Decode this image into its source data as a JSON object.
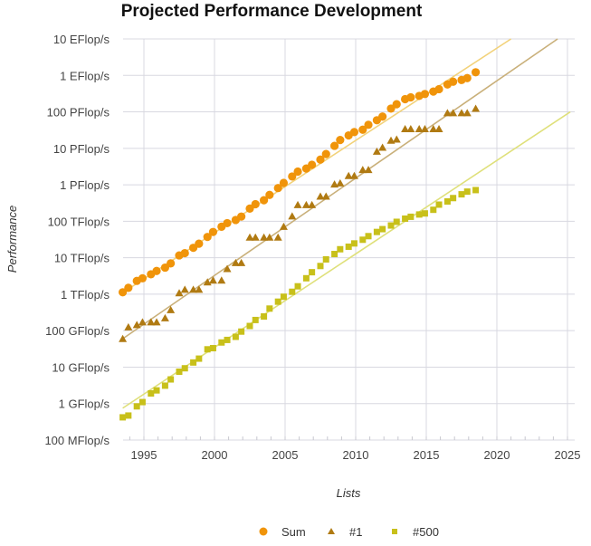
{
  "chart_data": {
    "type": "scatter",
    "title": "Projected Performance Development",
    "xlabel": "Lists",
    "ylabel": "Performance",
    "yscale": "log",
    "yunit": "GFlop/s",
    "ylim": [
      0.1,
      10000000000
    ],
    "xlim": [
      1993.3,
      2025.2
    ],
    "ytick_values": [
      0.1,
      1,
      10,
      100,
      1000,
      10000,
      100000,
      1000000,
      10000000,
      100000000,
      1000000000,
      10000000000
    ],
    "ytick_labels": [
      "100 MFlop/s",
      "1 GFlop/s",
      "10 GFlop/s",
      "100 GFlop/s",
      "1 TFlop/s",
      "10 TFlop/s",
      "100 TFlop/s",
      "1 PFlop/s",
      "10 PFlop/s",
      "100 PFlop/s",
      "1 EFlop/s",
      "10 EFlop/s"
    ],
    "xtick_values": [
      1995,
      2000,
      2005,
      2010,
      2015,
      2020,
      2025
    ],
    "xtick_labels": [
      "1995",
      "2000",
      "2005",
      "2010",
      "2015",
      "2020",
      "2025"
    ],
    "grid": true,
    "legend_position": "bottom",
    "x": [
      1993.5,
      1993.9,
      1994.5,
      1994.9,
      1995.5,
      1995.9,
      1996.5,
      1996.9,
      1997.5,
      1997.9,
      1998.5,
      1998.9,
      1999.5,
      1999.9,
      2000.5,
      2000.9,
      2001.5,
      2001.9,
      2002.5,
      2002.9,
      2003.5,
      2003.9,
      2004.5,
      2004.9,
      2005.5,
      2005.9,
      2006.5,
      2006.9,
      2007.5,
      2007.9,
      2008.5,
      2008.9,
      2009.5,
      2009.9,
      2010.5,
      2010.9,
      2011.5,
      2011.9,
      2012.5,
      2012.9,
      2013.5,
      2013.9,
      2014.5,
      2014.9,
      2015.5,
      2015.9,
      2016.5,
      2016.9,
      2017.5,
      2017.9,
      2018.5
    ],
    "series": [
      {
        "name": "Sum",
        "marker": "circle",
        "color": "#f0940a",
        "values": [
          1128,
          1493,
          2318,
          2733,
          3514,
          4335,
          5355,
          7007,
          11580,
          13373,
          18722,
          24290,
          37166,
          50880,
          70969,
          88926,
          108493,
          134530,
          222064,
          293658,
          377012,
          527860,
          813000,
          1127000,
          1690000,
          2300000,
          2790000,
          3540000,
          4920000,
          6970000,
          11700000,
          16950000,
          22600000,
          27950000,
          32400000,
          44200000,
          58900000,
          74200000,
          123000000,
          162000000,
          223000000,
          250000000,
          274000000,
          309000000,
          361000000,
          420000000,
          566000000,
          672000000,
          749000000,
          845000000,
          1220000000
        ],
        "trend": {
          "x": [
            1993.5,
            2021.0
          ],
          "values": [
            1100,
            10000000000
          ],
          "color": "#f2d27a"
        }
      },
      {
        "name": "#1",
        "marker": "triangle",
        "color": "#b07a12",
        "values": [
          59.7,
          124.5,
          143.4,
          170.4,
          170.4,
          170.4,
          220.4,
          368.2,
          1068,
          1338,
          1338,
          1338,
          2121,
          2379,
          2379,
          4938,
          7226,
          7226,
          35860,
          35860,
          35860,
          35860,
          35860,
          70720,
          136800,
          280600,
          280600,
          280600,
          478200,
          478200,
          1026000,
          1105000,
          1759000,
          1759000,
          2566000,
          2566000,
          8162000,
          10510000,
          16320000,
          17590000,
          33860000,
          33860000,
          33860000,
          33860000,
          33860000,
          33860000,
          93010000,
          93010000,
          93010000,
          93010000,
          122300000
        ],
        "trend": {
          "x": [
            1993.5,
            2024.3
          ],
          "values": [
            60,
            10000000000
          ],
          "color": "#c9b07a"
        }
      },
      {
        "name": "#500",
        "marker": "square",
        "color": "#c8c01a",
        "values": [
          0.42,
          0.47,
          0.84,
          1.1,
          1.9,
          2.3,
          3.1,
          4.6,
          7.5,
          9.3,
          13.4,
          17.1,
          30.8,
          33.1,
          47.4,
          55.7,
          67.8,
          94.3,
          134.3,
          195.8,
          245.1,
          403.4,
          624,
          851.1,
          1166,
          1646,
          2737,
          4005,
          5929,
          9000,
          12640,
          17090,
          20050,
          24670,
          31120,
          39090,
          50940,
          60820,
          76500,
          96620,
          117900,
          132700,
          153400,
          164000,
          206300,
          286000,
          349300,
          432200,
          548300,
          650000,
          715600
        ],
        "trend": {
          "x": [
            1993.5,
            2025.2
          ],
          "values": [
            0.75,
            100000000
          ],
          "color": "#dfe07a"
        }
      }
    ]
  }
}
